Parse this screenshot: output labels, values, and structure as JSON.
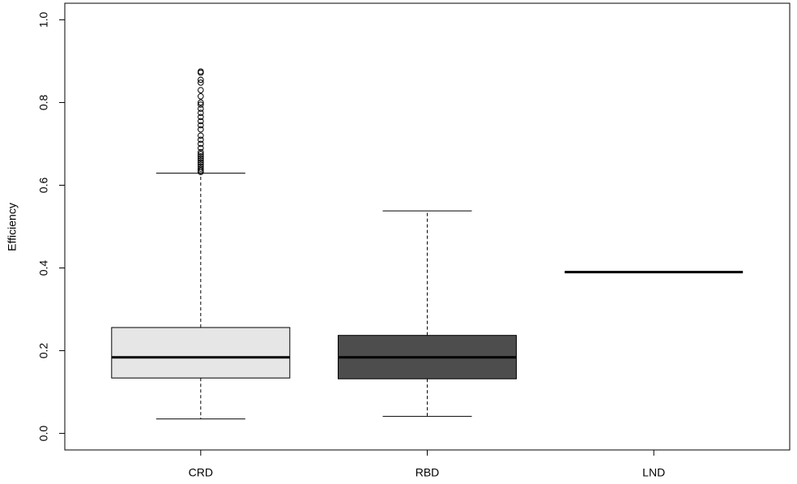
{
  "chart_data": {
    "type": "box",
    "ylabel": "Efficiency",
    "categories": [
      "CRD",
      "RBD",
      "LND"
    ],
    "boxes": [
      {
        "whislo": 0.035,
        "q1": 0.134,
        "med": 0.184,
        "q3": 0.256,
        "whishi": 0.629,
        "color": "#e6e6e6",
        "fliers": [
          0.632,
          0.636,
          0.64,
          0.645,
          0.65,
          0.655,
          0.66,
          0.665,
          0.67,
          0.675,
          0.68,
          0.69,
          0.7,
          0.71,
          0.72,
          0.735,
          0.745,
          0.755,
          0.765,
          0.775,
          0.785,
          0.795,
          0.8,
          0.815,
          0.83,
          0.848,
          0.855,
          0.872,
          0.875
        ]
      },
      {
        "whislo": 0.041,
        "q1": 0.132,
        "med": 0.184,
        "q3": 0.237,
        "whishi": 0.538,
        "color": "#4d4d4d",
        "fliers": []
      },
      {
        "whislo": 0.39,
        "q1": 0.39,
        "med": 0.39,
        "q3": 0.39,
        "whishi": 0.39,
        "color": "#ffffff",
        "fliers": []
      }
    ],
    "ylim": [
      -0.04,
      1.04
    ],
    "yticks": [
      {
        "value": 0,
        "label": "0.0"
      },
      0.2,
      0.4,
      0.6,
      0.8,
      {
        "value": 1,
        "label": "1.0"
      }
    ]
  }
}
